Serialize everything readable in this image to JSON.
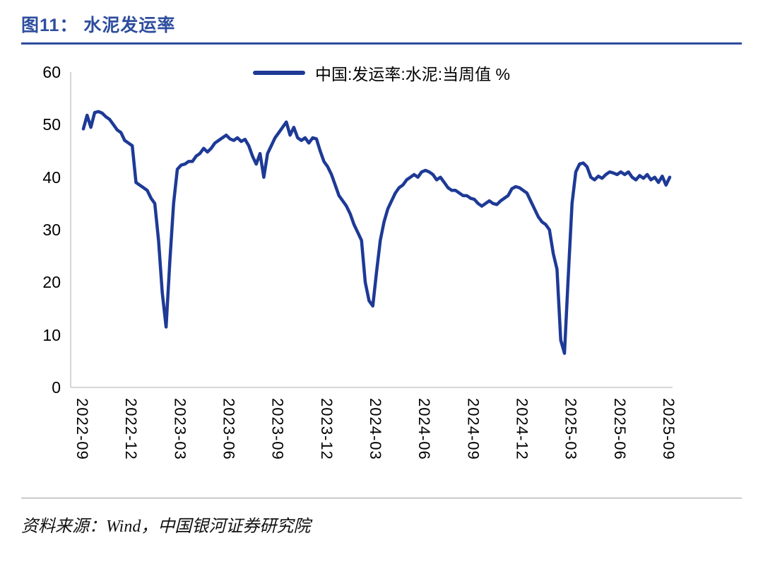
{
  "page": {
    "title": "图11： 水泥发运率",
    "source": "资料来源：Wind，中国银河证券研究院"
  },
  "colors": {
    "accent": "#2E4D9E",
    "line": "#1E3A96",
    "axis": "#C9C9C9",
    "divider": "#9A9A9A"
  },
  "chart_data": {
    "type": "line",
    "title": "图11： 水泥发运率",
    "legend_position": "top",
    "xlabel": "",
    "ylabel": "",
    "ylim": [
      0,
      60
    ],
    "yticks": [
      0,
      10,
      20,
      30,
      40,
      50,
      60
    ],
    "grid": false,
    "x_unit": "week",
    "x_ticks_every": 13,
    "x_tick_labels": [
      "2022-09",
      "2022-12",
      "2023-03",
      "2023-06",
      "2023-09",
      "2023-12",
      "2024-03",
      "2024-06",
      "2024-09",
      "2024-12",
      "2025-03",
      "2025-06",
      "2025-09"
    ],
    "series": [
      {
        "name": "中国:发运率:水泥:当周值 %",
        "color": "#1E3A96",
        "values": [
          49.2,
          51.8,
          49.5,
          52.3,
          52.5,
          52.2,
          51.5,
          51.0,
          50.0,
          49.0,
          48.5,
          47.0,
          46.5,
          46.0,
          39.0,
          38.5,
          38.0,
          37.5,
          36.0,
          35.0,
          28.0,
          18.0,
          11.5,
          24.0,
          35.0,
          41.5,
          42.3,
          42.5,
          43.0,
          43.0,
          44.0,
          44.5,
          45.5,
          44.8,
          45.5,
          46.5,
          47.0,
          47.5,
          48.0,
          47.3,
          47.0,
          47.5,
          46.8,
          47.2,
          46.0,
          44.0,
          42.5,
          44.5,
          40.0,
          44.5,
          46.0,
          47.5,
          48.5,
          49.5,
          50.5,
          48.0,
          49.5,
          47.5,
          47.0,
          47.5,
          46.5,
          47.5,
          47.3,
          45.0,
          43.0,
          42.0,
          40.5,
          38.5,
          36.5,
          35.5,
          34.5,
          33.0,
          31.0,
          29.5,
          28.0,
          20.0,
          16.5,
          15.5,
          22.0,
          28.0,
          31.5,
          34.0,
          35.5,
          37.0,
          38.0,
          38.5,
          39.5,
          40.0,
          40.5,
          40.0,
          41.0,
          41.3,
          41.0,
          40.5,
          39.5,
          40.0,
          39.0,
          38.0,
          37.5,
          37.5,
          37.0,
          36.5,
          36.5,
          36.0,
          35.8,
          35.0,
          34.5,
          35.0,
          35.5,
          35.0,
          34.8,
          35.5,
          36.0,
          36.5,
          37.8,
          38.2,
          38.0,
          37.5,
          37.0,
          35.5,
          34.0,
          32.5,
          31.5,
          31.0,
          30.0,
          25.5,
          22.5,
          9.0,
          6.5,
          21.0,
          35.0,
          41.0,
          42.5,
          42.7,
          42.0,
          40.0,
          39.5,
          40.2,
          39.8,
          40.5,
          41.0,
          40.8,
          40.5,
          41.0,
          40.5,
          41.0,
          40.0,
          39.5,
          40.3,
          39.8,
          40.5,
          39.5,
          40.0,
          39.0,
          40.2,
          38.5,
          40.0
        ]
      }
    ]
  }
}
